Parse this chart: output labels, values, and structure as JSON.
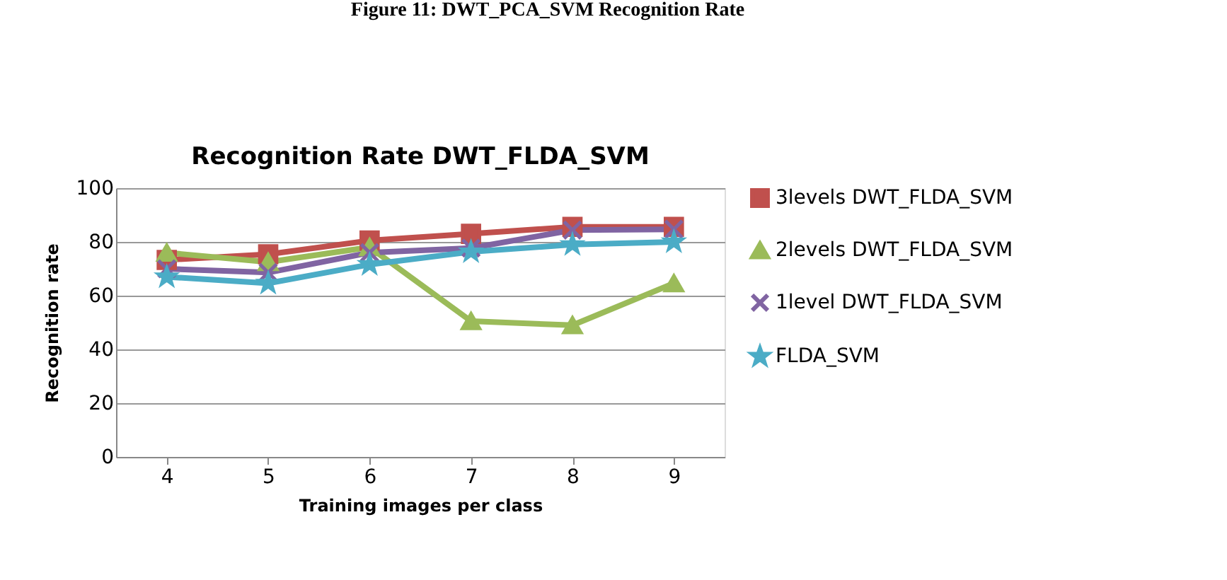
{
  "chart_data": {
    "type": "line",
    "title": "Recognition Rate DWT_FLDA_SVM",
    "xlabel": "Training images per class",
    "ylabel": "Recognition rate",
    "annotations": [
      "Figure 11: DWT_PCA_SVM Recognition Rate"
    ],
    "categories": [
      "4",
      "5",
      "6",
      "7",
      "8",
      "9"
    ],
    "series": [
      {
        "name": "3levels DWT_FLDA_SVM",
        "color": "#c0504d",
        "marker": "square",
        "values": [
          73.3,
          75.4,
          80.5,
          83,
          85.6,
          85.6
        ]
      },
      {
        "name": "2levels DWT_FLDA_SVM",
        "color": "#9bbb59",
        "marker": "triangle",
        "values": [
          76,
          72.5,
          78,
          50.5,
          49,
          64.6
        ]
      },
      {
        "name": "1level DWT_FLDA_SVM",
        "color": "#8064a2",
        "marker": "cross",
        "values": [
          70,
          68.6,
          76,
          77.7,
          84.4,
          84.7
        ]
      },
      {
        "name": "FLDA_SVM",
        "color": "#4bacc6",
        "marker": "star",
        "values": [
          67,
          64.6,
          71.6,
          76.3,
          79,
          80
        ]
      }
    ],
    "ylim": [
      0,
      100
    ],
    "yticks": [
      0,
      20,
      40,
      60,
      80,
      100
    ],
    "grid": "y",
    "legend": "right",
    "line_style": "solid"
  }
}
